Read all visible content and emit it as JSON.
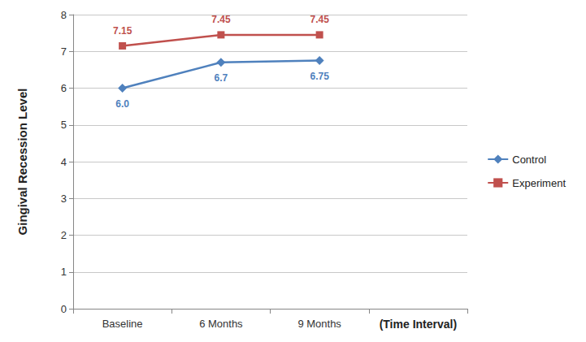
{
  "chart_data": {
    "type": "line",
    "x_label": "(Time Interval)",
    "y_label": "Gingival Recession Level",
    "categories": [
      "Baseline",
      "6 Months",
      "9 Months",
      null
    ],
    "series": [
      {
        "name": "Control",
        "color": "#4f81bd",
        "marker": "diamond",
        "values": [
          6.0,
          6.7,
          6.75,
          null
        ],
        "value_labels": [
          "6.0",
          "6.7",
          "6.75",
          null
        ]
      },
      {
        "name": "Experiment",
        "color": "#c0504d",
        "marker": "square",
        "values": [
          7.15,
          7.45,
          7.45,
          null
        ]
      }
    ],
    "ylim": [
      0,
      8
    ],
    "yticks": [
      0,
      1,
      2,
      3,
      4,
      5,
      6,
      7,
      8
    ],
    "grid": true,
    "legend": "right",
    "data_labels": true
  }
}
